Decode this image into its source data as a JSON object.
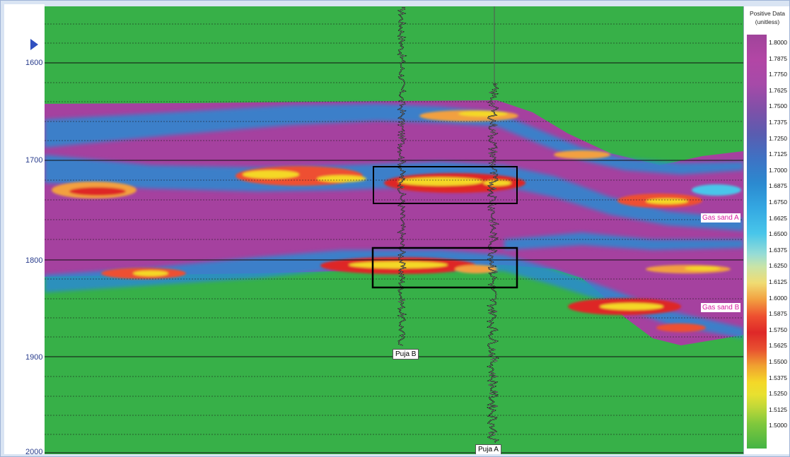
{
  "depth_axis": {
    "labels": [
      "1600",
      "1700",
      "1800",
      "1900",
      "2000"
    ]
  },
  "wells": [
    {
      "name": "Puja B"
    },
    {
      "name": "Puja A"
    }
  ],
  "horizons": [
    {
      "name": "Gas sand A"
    },
    {
      "name": "Gas sand B"
    }
  ],
  "legend": {
    "title_line1": "Positive Data",
    "title_line2": "(unitless)",
    "ticks": [
      "1.8000",
      "1.7875",
      "1.7750",
      "1.7625",
      "1.7500",
      "1.7375",
      "1.7250",
      "1.7125",
      "1.7000",
      "1.6875",
      "1.6750",
      "1.6625",
      "1.6500",
      "1.6375",
      "1.6250",
      "1.6125",
      "1.6000",
      "1.5875",
      "1.5750",
      "1.5625",
      "1.5500",
      "1.5375",
      "1.5250",
      "1.5125",
      "1.5000"
    ],
    "colors": {
      "top": "#a0449a",
      "bottom": "#44b444"
    }
  },
  "colors": {
    "background_fill": "#37b048",
    "formation_fill": "#a5419f",
    "highlight_box": "#000000"
  }
}
